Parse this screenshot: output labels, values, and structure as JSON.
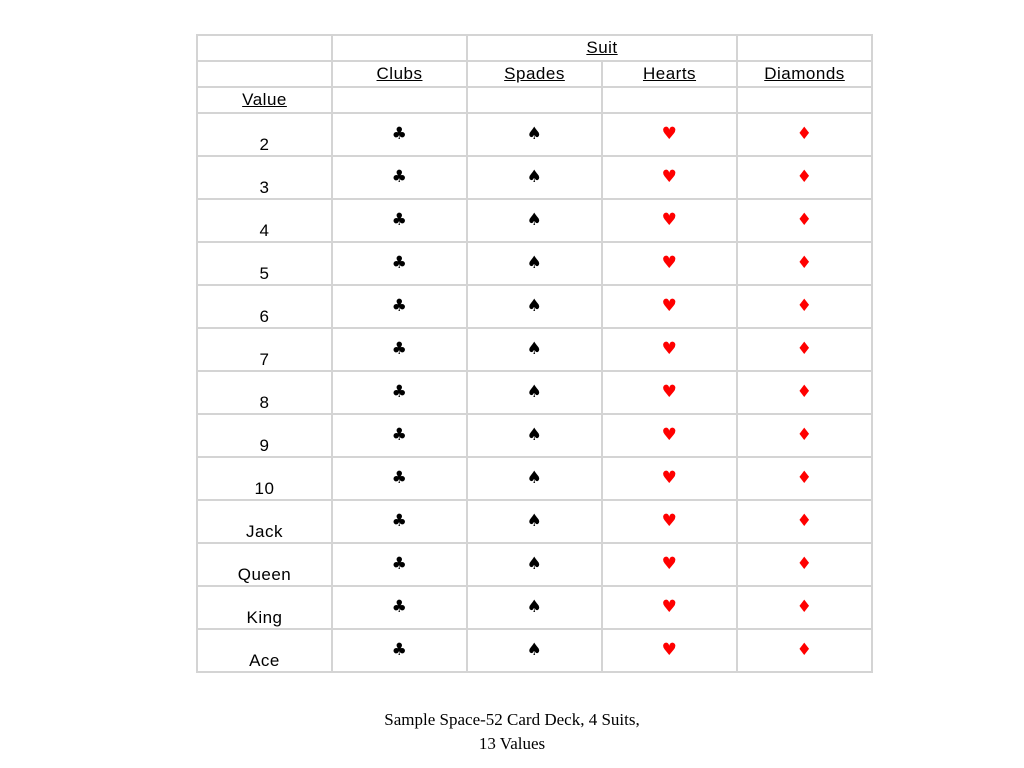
{
  "header": {
    "suit_label": "Suit",
    "value_label": "Value",
    "suits": [
      {
        "name": "Clubs",
        "symbol": "♣",
        "color": "#000000"
      },
      {
        "name": "Spades",
        "symbol": "♠",
        "color": "#000000"
      },
      {
        "name": "Hearts",
        "symbol": "♥",
        "color": "#ff0000"
      },
      {
        "name": "Diamonds",
        "symbol": "♦",
        "color": "#ff0000"
      }
    ]
  },
  "values": [
    "2",
    "3",
    "4",
    "5",
    "6",
    "7",
    "8",
    "9",
    "10",
    "Jack",
    "Queen",
    "King",
    "Ace"
  ],
  "caption": {
    "line1": "Sample Space-52 Card Deck, 4 Suits,",
    "line2": "13 Values"
  }
}
